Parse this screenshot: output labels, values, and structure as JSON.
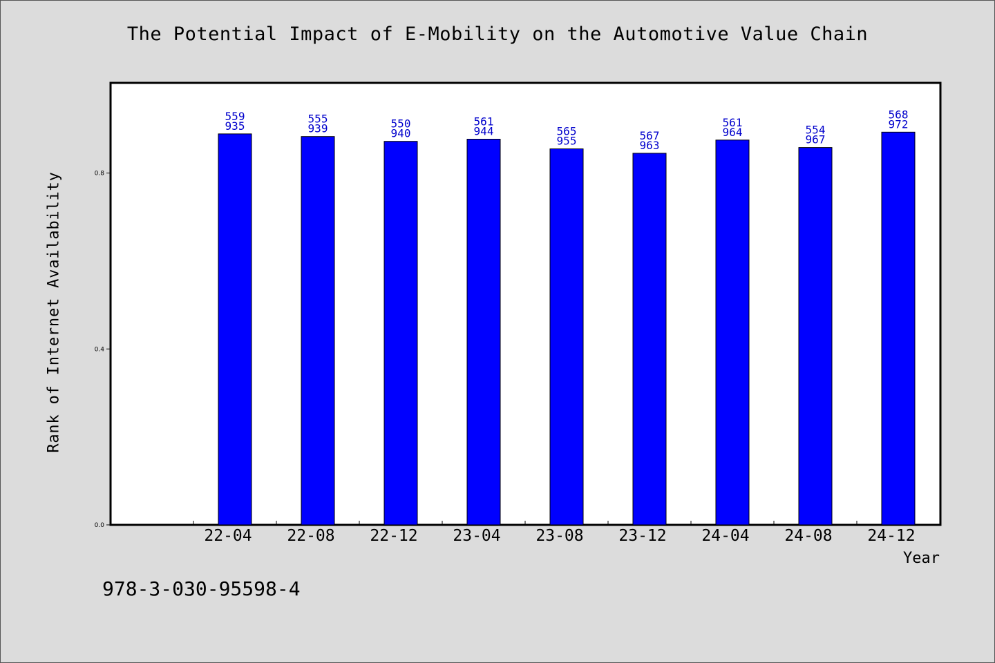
{
  "colors": {
    "background": "#dcdcdc",
    "plot_background": "#ffffff",
    "bar_fill": "#0000ff",
    "bar_label": "#0000cc"
  },
  "isbn": "978-3-030-95598-4",
  "chart_data": {
    "type": "bar",
    "title": "The Potential Impact of E-Mobility on the Automotive Value Chain",
    "xlabel": "Year",
    "ylabel": "Rank of Internet Availability",
    "categories": [
      "22-04",
      "22-08",
      "22-12",
      "23-04",
      "23-08",
      "23-12",
      "24-04",
      "24-08",
      "24-12"
    ],
    "values": [
      0.889,
      0.883,
      0.872,
      0.877,
      0.855,
      0.845,
      0.875,
      0.858,
      0.893
    ],
    "bar_labels_top": [
      "559",
      "555",
      "550",
      "561",
      "565",
      "567",
      "561",
      "554",
      "568"
    ],
    "bar_labels_bottom": [
      "935",
      "939",
      "940",
      "944",
      "955",
      "963",
      "964",
      "967",
      "972"
    ],
    "yticks": [
      "0.0",
      "0.4",
      "0.8"
    ],
    "ylim": [
      0,
      1.005
    ],
    "grid": false,
    "legend": false
  }
}
